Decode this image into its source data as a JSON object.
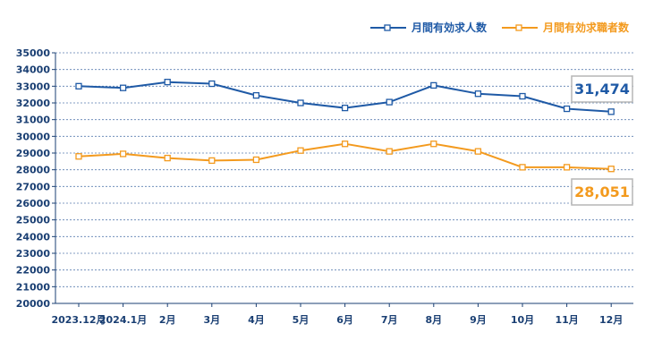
{
  "chart_data": {
    "type": "line",
    "categories": [
      "2023.12月",
      "2024.1月",
      "2月",
      "3月",
      "4月",
      "5月",
      "6月",
      "7月",
      "8月",
      "9月",
      "10月",
      "11月",
      "12月"
    ],
    "series": [
      {
        "name": "月間有効求人数",
        "color": "#1f5aa6",
        "values": [
          33000,
          32900,
          33250,
          33150,
          32450,
          32000,
          31700,
          32050,
          33050,
          32550,
          32400,
          31650,
          31474
        ]
      },
      {
        "name": "月間有効求職者数",
        "color": "#f39a1e",
        "values": [
          28800,
          28950,
          28700,
          28550,
          28600,
          29150,
          29550,
          29100,
          29550,
          29100,
          28150,
          28150,
          28051
        ]
      }
    ],
    "yticks": [
      20000,
      21000,
      22000,
      23000,
      24000,
      25000,
      26000,
      27000,
      28000,
      29000,
      30000,
      31000,
      32000,
      33000,
      34000,
      35000
    ],
    "ylim": [
      20000,
      35000
    ],
    "grid": "horizontal-dotted",
    "legend": "top-right",
    "annotations": [
      {
        "text": "31,474",
        "series": 0
      },
      {
        "text": "28,051",
        "series": 1
      }
    ]
  }
}
